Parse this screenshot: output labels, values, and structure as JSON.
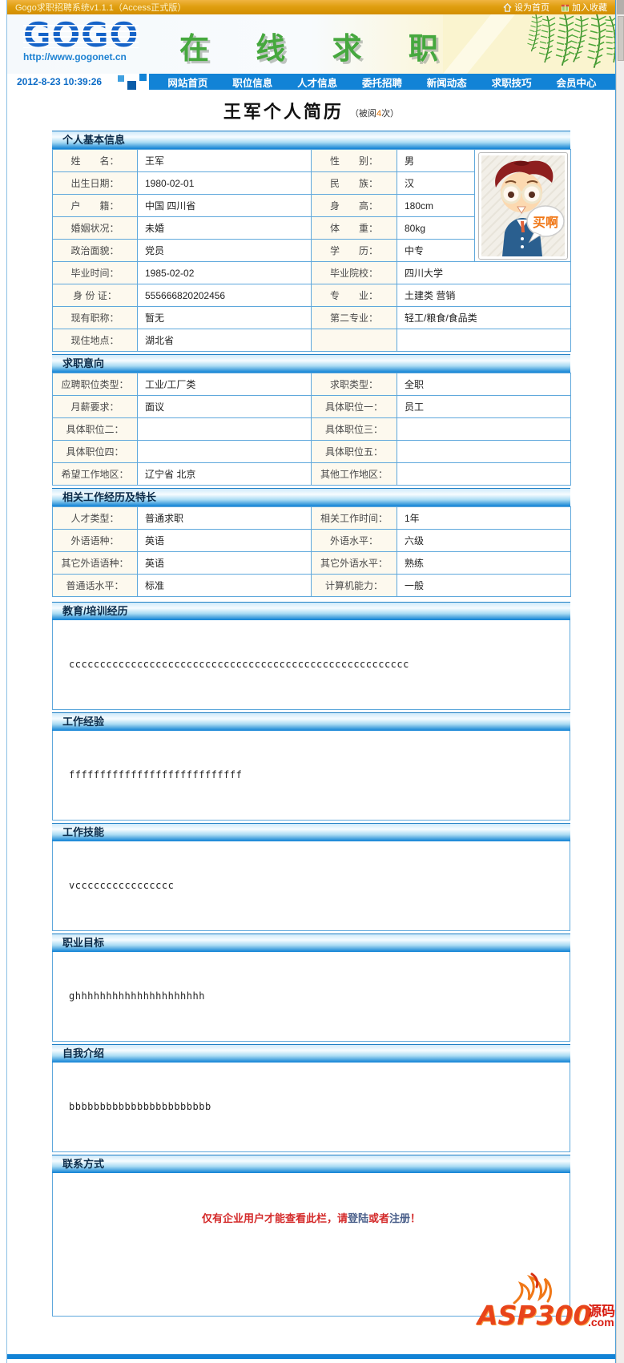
{
  "topbar": {
    "title": "Gogo求职招聘系统v1.1.1（Access正式版）",
    "set_home": "设为首页",
    "add_favorite": "加入收藏"
  },
  "masthead": {
    "logo_text": "GOGO",
    "logo_url": "http://www.gogonet.cn",
    "banner_title": "在 线 求 职",
    "datetime": "2012-8-23 10:39:26"
  },
  "nav": {
    "items": [
      {
        "key": "home",
        "label": "网站首页"
      },
      {
        "key": "jobs",
        "label": "职位信息"
      },
      {
        "key": "talents",
        "label": "人才信息"
      },
      {
        "key": "entrust",
        "label": "委托招聘"
      },
      {
        "key": "news",
        "label": "新闻动态"
      },
      {
        "key": "tips",
        "label": "求职技巧"
      },
      {
        "key": "member",
        "label": "会员中心"
      }
    ]
  },
  "page_title": {
    "title": "王军个人简历",
    "views_prefix": "（被阅",
    "views_count": "4",
    "views_suffix": "次）"
  },
  "photo": {
    "bubble": "买啊"
  },
  "resume": {
    "field_sections": [
      {
        "key": "basic-info",
        "header": "个人基本信息",
        "photo_rows": 5,
        "rows": [
          {
            "l1": "姓　　名：",
            "v1": "王军",
            "l2": "性　　别：",
            "v2": "男"
          },
          {
            "l1": "出生日期：",
            "v1": "1980-02-01",
            "l2": "民　　族：",
            "v2": "汉"
          },
          {
            "l1": "户　　籍：",
            "v1": "中国 四川省",
            "l2": "身　　高：",
            "v2": "180cm"
          },
          {
            "l1": "婚姻状况：",
            "v1": "未婚",
            "l2": "体　　重：",
            "v2": "80kg"
          },
          {
            "l1": "政治面貌：",
            "v1": "党员",
            "l2": "学　　历：",
            "v2": "中专"
          },
          {
            "l1": "毕业时间：",
            "v1": "1985-02-02",
            "l2": "毕业院校：",
            "v2": "四川大学"
          },
          {
            "l1": "身 份 证：",
            "v1": "555666820202456",
            "l2": "专　　业：",
            "v2": "土建类 营销"
          },
          {
            "l1": "现有职称：",
            "v1": "暂无",
            "l2": "第二专业：",
            "v2": "轻工/粮食/食品类"
          },
          {
            "l1": "现住地点：",
            "v1": "湖北省",
            "l2": "",
            "v2": ""
          }
        ]
      },
      {
        "key": "job-intention",
        "header": "求职意向",
        "rows": [
          {
            "l1": "应聘职位类型：",
            "v1": "工业/工厂类",
            "l2": "求职类型：",
            "v2": "全职"
          },
          {
            "l1": "月薪要求：",
            "v1": "面议",
            "l2": "具体职位一：",
            "v2": "员工"
          },
          {
            "l1": "具体职位二：",
            "v1": "",
            "l2": "具体职位三：",
            "v2": ""
          },
          {
            "l1": "具体职位四：",
            "v1": "",
            "l2": "具体职位五：",
            "v2": ""
          },
          {
            "l1": "希望工作地区：",
            "v1": "辽宁省 北京",
            "l2": "其他工作地区：",
            "v2": ""
          }
        ]
      },
      {
        "key": "experience-specialty",
        "header": "相关工作经历及特长",
        "rows": [
          {
            "l1": "人才类型：",
            "v1": "普通求职",
            "l2": "相关工作时间：",
            "v2": "1年"
          },
          {
            "l1": "外语语种：",
            "v1": "英语",
            "l2": "外语水平：",
            "v2": "六级"
          },
          {
            "l1": "其它外语语种：",
            "v1": "英语",
            "l2": "其它外语水平：",
            "v2": "熟练"
          },
          {
            "l1": "普通话水平：",
            "v1": "标准",
            "l2": "计算机能力：",
            "v2": "一般"
          }
        ]
      }
    ],
    "text_sections": [
      {
        "key": "education",
        "header": "教育/培训经历",
        "content": "ccccccccccccccccccccccccccccccccccccccccccccccccccccccc"
      },
      {
        "key": "work-experience",
        "header": "工作经验",
        "content": "ffffffffffffffffffffffffffff"
      },
      {
        "key": "work-skills",
        "header": "工作技能",
        "content": "vcccccccccccccccc"
      },
      {
        "key": "career-goal",
        "header": "职业目标",
        "content": "ghhhhhhhhhhhhhhhhhhhhh"
      },
      {
        "key": "self-intro",
        "header": "自我介绍",
        "content": "bbbbbbbbbbbbbbbbbbbbbbb"
      }
    ],
    "contact": {
      "header": "联系方式",
      "notice_pre": "仅有企业用户才能查看此栏，请",
      "login": "登陆",
      "middle": "或者",
      "register": "注册",
      "end": "！"
    }
  },
  "watermark": {
    "brand": "ASP300",
    "suffix": "源码",
    "com": ".com"
  },
  "colors": {
    "nav_blue": "#1283d6",
    "topbar_orange": "#e09f10",
    "header_green": "#46a83e",
    "notice_red": "#d42a2a",
    "views_orange": "#e07000"
  }
}
